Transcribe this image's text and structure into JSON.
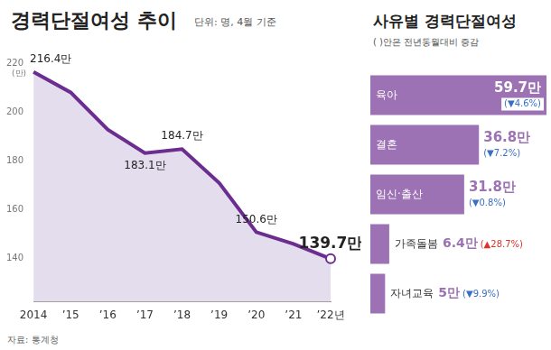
{
  "chart_data": [
    {
      "type": "line",
      "title": "경력단절여성 추이",
      "subtitle": "단위: 명, 4월 기준",
      "y_label": "(만)",
      "source": "자료: 통계청",
      "categories": [
        "2014",
        "’15",
        "’16",
        "’17",
        "’18",
        "’19",
        "’20",
        "’21",
        "’22년"
      ],
      "values": [
        216.4,
        208,
        192.7,
        183.1,
        184.7,
        170.8,
        150.6,
        145.8,
        139.7
      ],
      "value_labels": [
        "216.4만",
        null,
        null,
        "183.1만",
        "184.7만",
        null,
        "150.6만",
        null,
        "139.7만"
      ],
      "data_labels": true,
      "color": "#6b2d8f",
      "ylim": [
        122,
        220
      ],
      "yticks": [
        140,
        160,
        180,
        200,
        220
      ],
      "grid": false
    },
    {
      "type": "bar",
      "orientation": "horizontal",
      "title": "사유별 경력단절여성",
      "subtitle": "( )안은 전년동월대비 증감",
      "categories": [
        "육아",
        "결혼",
        "임신·출산",
        "가족돌봄",
        "자녀교육"
      ],
      "values": [
        59.7,
        36.8,
        31.8,
        6.4,
        5
      ],
      "value_labels": [
        "59.7만",
        "36.8만",
        "31.8만",
        "6.4만",
        "5만"
      ],
      "changes": [
        -4.6,
        -7.2,
        -0.8,
        28.7,
        -9.9
      ],
      "change_labels": [
        "(▼4.6%)",
        "(▼7.2%)",
        "(▼0.8%)",
        "(▲28.7%)",
        "(▼9.9%)"
      ],
      "data_labels": true,
      "color": "#9c72b5",
      "xlim": [
        0,
        60
      ],
      "tick_labels": false,
      "grid": false
    }
  ]
}
